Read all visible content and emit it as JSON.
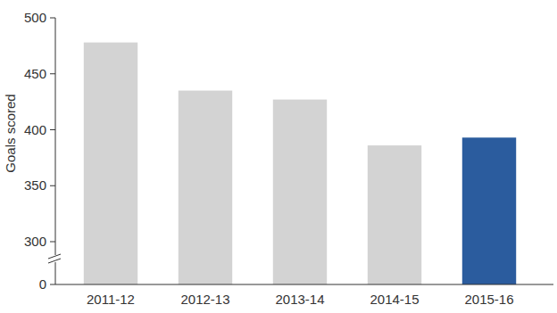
{
  "chart_data": {
    "type": "bar",
    "y_label": "Goals scored",
    "categories": [
      "2011-12",
      "2012-13",
      "2013-14",
      "2014-15",
      "2015-16"
    ],
    "values": [
      478,
      435,
      427,
      386,
      393
    ],
    "colors": [
      "#d3d3d3",
      "#d3d3d3",
      "#d3d3d3",
      "#d3d3d3",
      "#2b5c9e"
    ],
    "ylim": [
      0,
      500
    ],
    "yticks": [
      0,
      300,
      350,
      400,
      450,
      500
    ],
    "grid": false
  }
}
